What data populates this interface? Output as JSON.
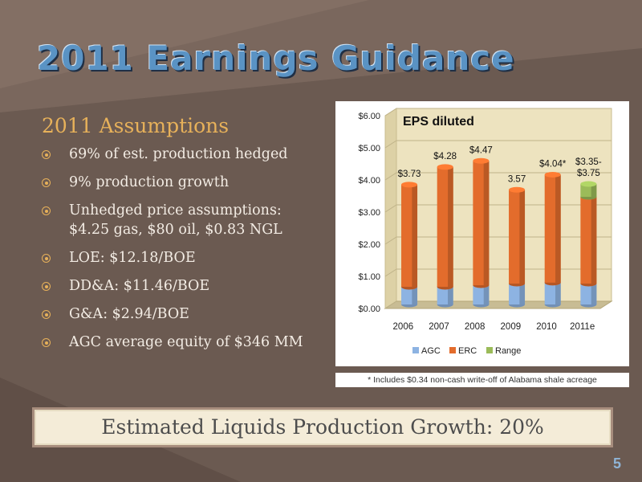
{
  "title": "2011 Earnings Guidance",
  "assumptions": {
    "heading": "2011 Assumptions",
    "items": [
      "69% of est. production hedged",
      "9% production growth",
      "Unhedged price assumptions: $4.25 gas, $80 oil, $0.83 NGL",
      "LOE: $12.18/BOE",
      "DD&A: $11.46/BOE",
      "G&A: $2.94/BOE",
      "AGC average equity of $346 MM"
    ]
  },
  "chart_data": {
    "type": "bar",
    "stacked": true,
    "title": "EPS diluted",
    "categories": [
      "2006",
      "2007",
      "2008",
      "2009",
      "2010",
      "2011e"
    ],
    "series": [
      {
        "name": "AGC",
        "values": [
          0.55,
          0.55,
          0.6,
          0.65,
          0.68,
          0.65
        ],
        "color": "#8db3e2"
      },
      {
        "name": "ERC",
        "values": [
          3.18,
          3.73,
          3.87,
          2.92,
          3.36,
          2.7
        ],
        "color": "#e36c2c"
      },
      {
        "name": "Range",
        "values": [
          0,
          0,
          0,
          0,
          0,
          0.4
        ],
        "color": "#9bbb59"
      }
    ],
    "data_labels": [
      "$3.73",
      "$4.28",
      "$4.47",
      "3.57",
      "$4.04*",
      "$3.35-$3.75"
    ],
    "ylim": [
      0,
      6
    ],
    "yticks": [
      "$0.00",
      "$1.00",
      "$2.00",
      "$3.00",
      "$4.00",
      "$5.00",
      "$6.00"
    ],
    "grid": true,
    "legend": "bottom",
    "footnote": "* Includes $0.34 non-cash write-off of Alabama shale acreage"
  },
  "banner": "Estimated Liquids Production Growth: 20%",
  "page_number": "5"
}
